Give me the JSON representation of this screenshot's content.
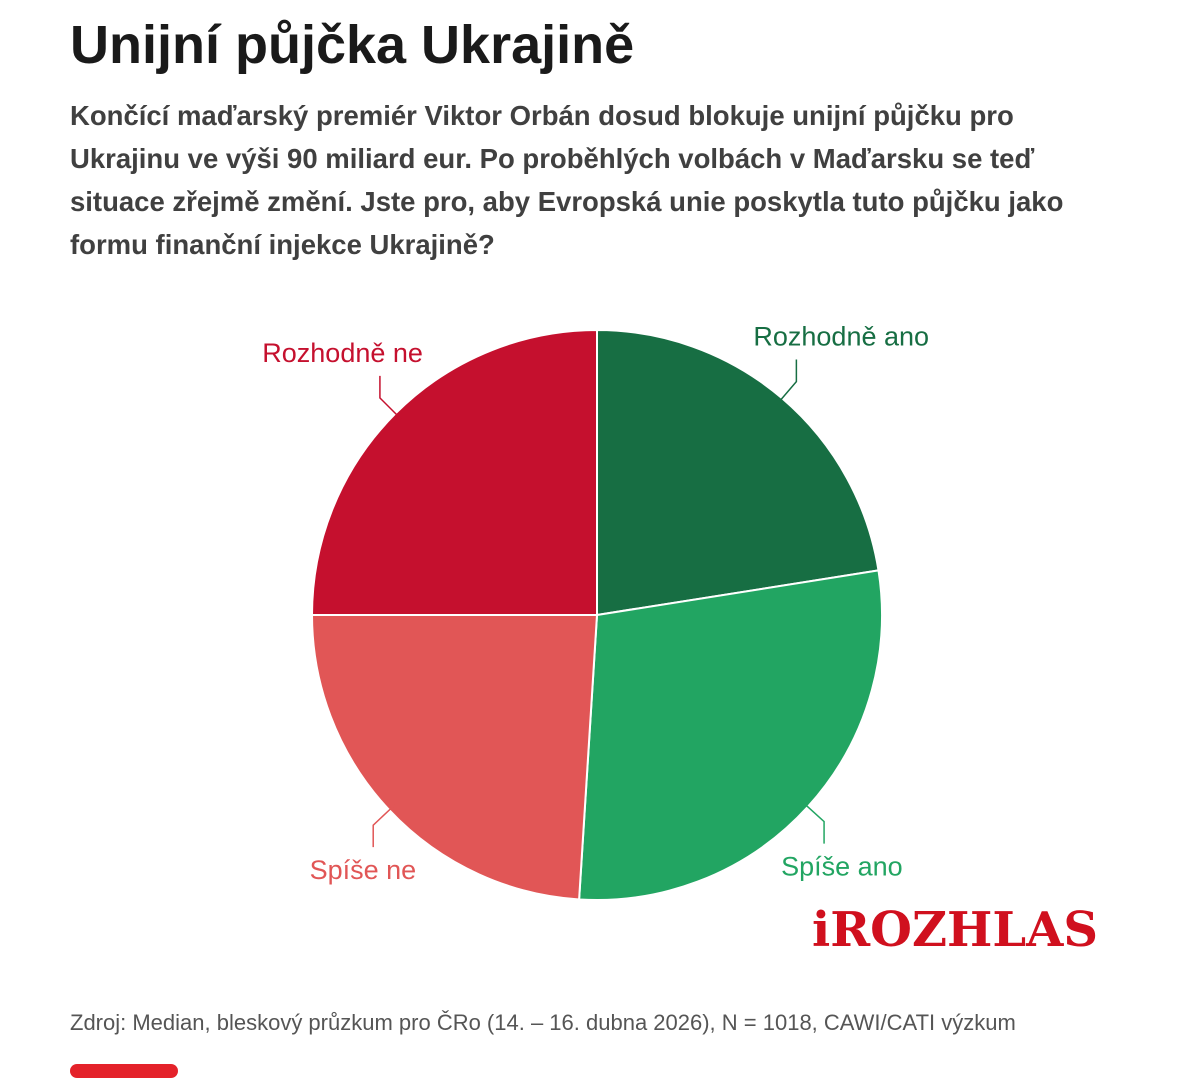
{
  "title": "Unijní půjčka Ukrajině",
  "subtitle": "Končící maďarský premiér Viktor Orbán dosud blokuje unijní půjčku pro Ukrajinu ve výši 90 miliard eur. Po proběhlých volbách v Maďarsku se teď situace zřejmě změní. Jste pro, aby Evropská unie poskytla tuto půjčku jako formu finanční injekce Ukrajině?",
  "source": "Zdroj: Median, bleskový průzkum pro ČRo (14. – 16. dubna 2026), N = 1018, CAWI/CATI výzkum",
  "logo": "iROZHLAS",
  "colors": {
    "rozhodne_ano": "#176e43",
    "spise_ano": "#22a562",
    "spise_ne": "#e15656",
    "rozhodne_ne": "#c5102e",
    "brand": "#d0101e"
  },
  "chart_data": {
    "type": "pie",
    "title": "",
    "slices": [
      {
        "label": "Rozhodně ano",
        "value": 22.5,
        "color": "#176e43"
      },
      {
        "label": "Spíše ano",
        "value": 28.5,
        "color": "#22a562"
      },
      {
        "label": "Spíše ne",
        "value": 24.0,
        "color": "#e15656"
      },
      {
        "label": "Rozhodně ne",
        "value": 25.0,
        "color": "#c5102e"
      }
    ]
  }
}
